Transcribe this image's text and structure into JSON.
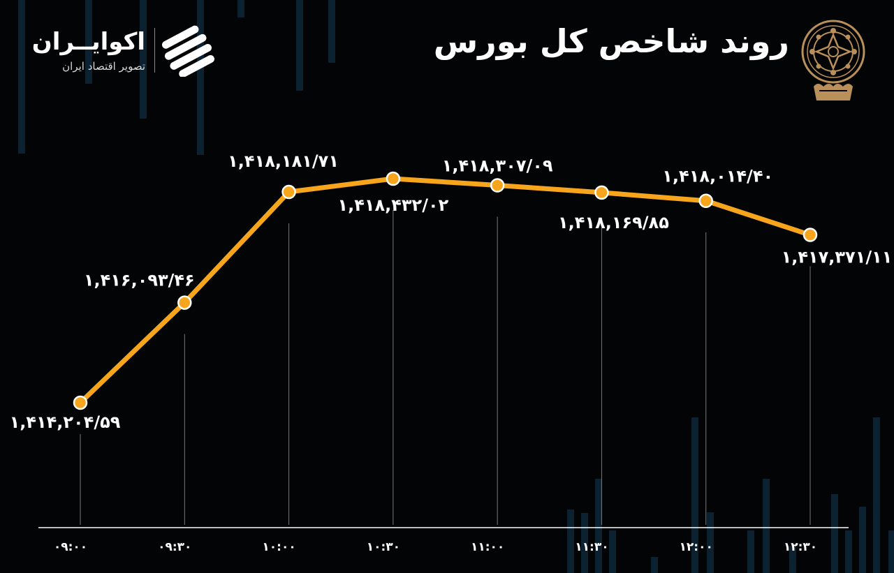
{
  "header": {
    "title": "روند شاخص کل بورس",
    "brand_name": "اکوایــران",
    "brand_sub": "تصویر اقتصاد ایران"
  },
  "colors": {
    "line": "#F7A51C",
    "marker_fill": "#F7A51C",
    "marker_stroke": "#FFFFFF",
    "background": "#030405",
    "seal_gold": "#B9905A"
  },
  "chart_data": {
    "type": "line",
    "title": "روند شاخص کل بورس",
    "xlabel": "",
    "ylabel": "",
    "categories": [
      "۰۹:۰۰",
      "۰۹:۳۰",
      "۱۰:۰۰",
      "۱۰:۳۰",
      "۱۱:۰۰",
      "۱۱:۳۰",
      "۱۲:۰۰",
      "۱۲:۳۰"
    ],
    "values": [
      1414204.59,
      1416093.46,
      1418181.71,
      1418432.02,
      1418307.09,
      1418169.85,
      1418014.4,
      1417371.11
    ],
    "data_labels": [
      "۱,۴۱۴,۲۰۴/۵۹",
      "۱,۴۱۶,۰۹۳/۴۶",
      "۱,۴۱۸,۱۸۱/۷۱",
      "۱,۴۱۸,۴۳۲/۰۲",
      "۱,۴۱۸,۳۰۷/۰۹",
      "۱,۴۱۸,۱۶۹/۸۵",
      "۱,۴۱۸,۰۱۴/۴۰",
      "۱,۴۱۷,۳۷۱/۱۱"
    ],
    "grid": false,
    "legend": "none"
  }
}
